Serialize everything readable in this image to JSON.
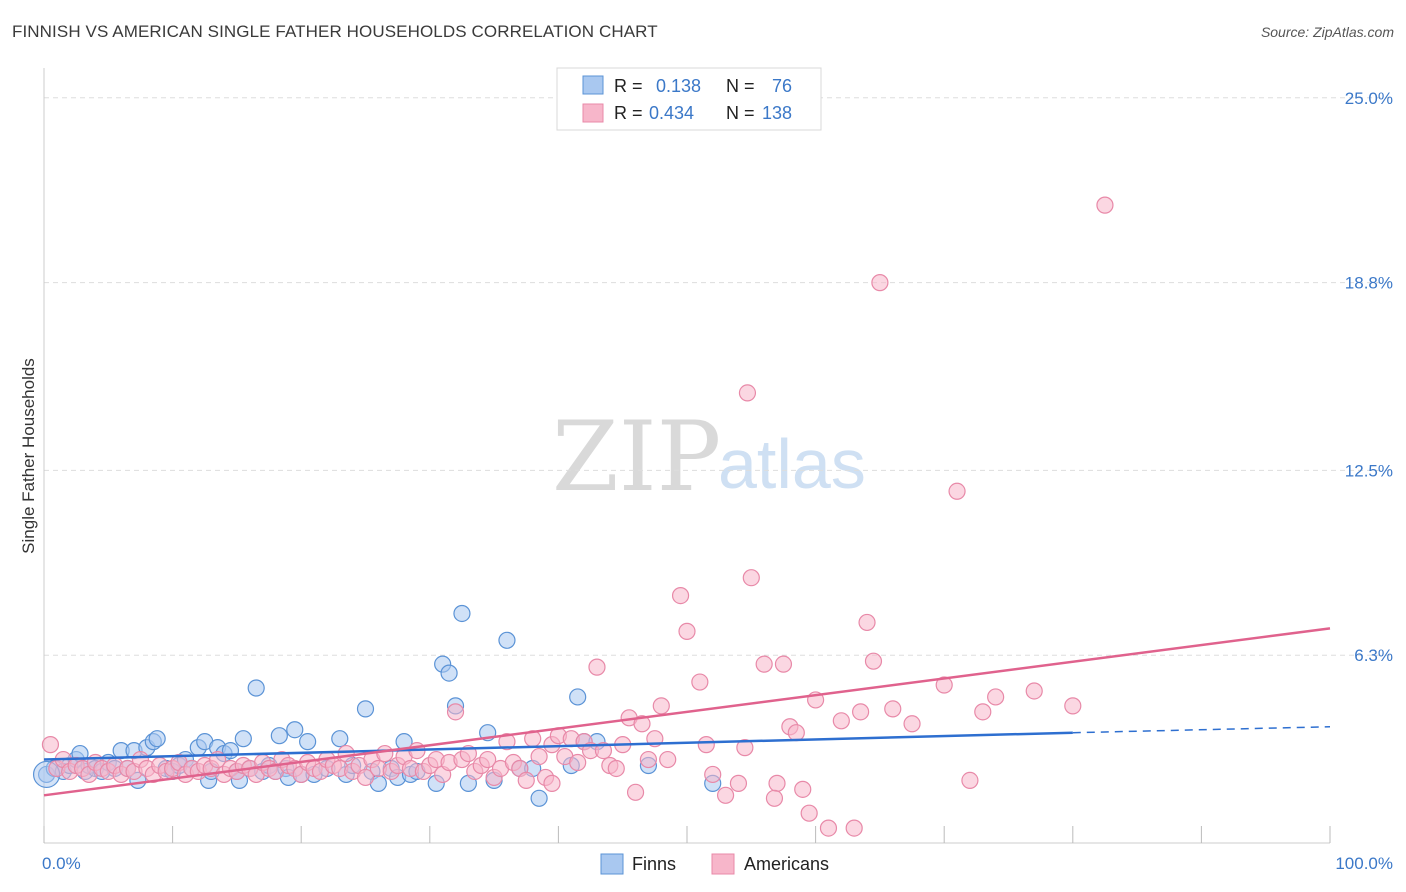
{
  "header": {
    "title": "FINNISH VS AMERICAN SINGLE FATHER HOUSEHOLDS CORRELATION CHART",
    "source": "Source: ZipAtlas.com"
  },
  "watermark": {
    "zip": "ZIP",
    "atlas": "atlas"
  },
  "legend": {
    "rows": [
      {
        "r_label": "R =",
        "r_value": "0.138",
        "n_label": "N =",
        "n_value": "76"
      },
      {
        "r_label": "R =",
        "r_value": "0.434",
        "n_label": "N =",
        "n_value": "138"
      }
    ]
  },
  "bottom_legend": {
    "finns": "Finns",
    "americans": "Americans"
  },
  "colors": {
    "finns_fill": "#a9c8f0",
    "finns_stroke": "#5b93d6",
    "finns_line": "#2e6fd0",
    "americans_fill": "#f7b6ca",
    "americans_stroke": "#e889a8",
    "americans_line": "#e0628d",
    "tick_text": "#3b78c8",
    "grid": "#dddddd"
  },
  "chart_data": {
    "type": "scatter",
    "title": "FINNISH VS AMERICAN SINGLE FATHER HOUSEHOLDS CORRELATION CHART",
    "xlabel": "",
    "ylabel": "Single Father Households",
    "xlim": [
      0,
      100
    ],
    "ylim": [
      0,
      26
    ],
    "x_tick_labels": [
      "0.0%",
      "100.0%"
    ],
    "y_ticks": [
      6.3,
      12.5,
      18.8,
      25.0
    ],
    "y_tick_labels": [
      "6.3%",
      "12.5%",
      "18.8%",
      "25.0%"
    ],
    "grid": true,
    "legend_position": "top-center",
    "series": [
      {
        "name": "Finns",
        "r": 0.138,
        "n": 76,
        "trend": {
          "x0": 0,
          "y0": 2.8,
          "x1": 80,
          "y1": 3.7,
          "dashed_to_x": 100,
          "dashed_to_y": 3.9
        },
        "points": [
          [
            0.2,
            2.3
          ],
          [
            0.8,
            2.5
          ],
          [
            1.5,
            2.4
          ],
          [
            2.0,
            2.6
          ],
          [
            2.5,
            2.8
          ],
          [
            2.8,
            3.0
          ],
          [
            3.2,
            2.4
          ],
          [
            3.5,
            2.6
          ],
          [
            4.0,
            2.5
          ],
          [
            4.5,
            2.4
          ],
          [
            5.0,
            2.7
          ],
          [
            5.5,
            2.5
          ],
          [
            6.0,
            3.1
          ],
          [
            6.5,
            2.5
          ],
          [
            7.0,
            3.1
          ],
          [
            7.3,
            2.1
          ],
          [
            8.0,
            3.2
          ],
          [
            8.5,
            3.4
          ],
          [
            8.8,
            3.5
          ],
          [
            9.5,
            2.5
          ],
          [
            10.0,
            2.4
          ],
          [
            10.5,
            2.6
          ],
          [
            11.0,
            2.8
          ],
          [
            11.5,
            2.5
          ],
          [
            12.0,
            3.2
          ],
          [
            12.5,
            3.4
          ],
          [
            12.8,
            2.1
          ],
          [
            13.0,
            2.4
          ],
          [
            13.5,
            3.2
          ],
          [
            14.0,
            3.0
          ],
          [
            14.5,
            3.1
          ],
          [
            15.0,
            2.4
          ],
          [
            15.2,
            2.1
          ],
          [
            15.5,
            3.5
          ],
          [
            16.0,
            2.5
          ],
          [
            16.5,
            5.2
          ],
          [
            17.0,
            2.4
          ],
          [
            17.5,
            2.6
          ],
          [
            18.0,
            2.4
          ],
          [
            18.3,
            3.6
          ],
          [
            18.8,
            2.5
          ],
          [
            19.0,
            2.2
          ],
          [
            19.5,
            3.8
          ],
          [
            20.0,
            2.3
          ],
          [
            20.5,
            3.4
          ],
          [
            21.0,
            2.3
          ],
          [
            22.0,
            2.5
          ],
          [
            23.0,
            3.5
          ],
          [
            23.5,
            2.3
          ],
          [
            24.0,
            2.6
          ],
          [
            25.0,
            4.5
          ],
          [
            25.5,
            2.4
          ],
          [
            26.0,
            2.0
          ],
          [
            27.0,
            2.5
          ],
          [
            27.5,
            2.2
          ],
          [
            28.0,
            3.4
          ],
          [
            28.5,
            2.3
          ],
          [
            29.0,
            2.4
          ],
          [
            30.5,
            2.0
          ],
          [
            31.0,
            6.0
          ],
          [
            31.5,
            5.7
          ],
          [
            32.0,
            4.6
          ],
          [
            32.5,
            7.7
          ],
          [
            33.0,
            2.0
          ],
          [
            34.5,
            3.7
          ],
          [
            35.0,
            2.1
          ],
          [
            36.0,
            6.8
          ],
          [
            37.0,
            2.5
          ],
          [
            38.0,
            2.5
          ],
          [
            38.5,
            1.5
          ],
          [
            41.0,
            2.6
          ],
          [
            41.5,
            4.9
          ],
          [
            42.0,
            3.4
          ],
          [
            43.0,
            3.4
          ],
          [
            47.0,
            2.6
          ],
          [
            52.0,
            2.0
          ]
        ]
      },
      {
        "name": "Americans",
        "r": 0.434,
        "n": 138,
        "trend": {
          "x0": 0,
          "y0": 1.6,
          "x1": 100,
          "y1": 7.2
        },
        "points": [
          [
            0.5,
            3.3
          ],
          [
            1.0,
            2.5
          ],
          [
            1.5,
            2.8
          ],
          [
            2.0,
            2.4
          ],
          [
            2.5,
            2.6
          ],
          [
            3.0,
            2.5
          ],
          [
            3.5,
            2.3
          ],
          [
            4.0,
            2.7
          ],
          [
            4.5,
            2.5
          ],
          [
            5.0,
            2.4
          ],
          [
            5.5,
            2.6
          ],
          [
            6.0,
            2.3
          ],
          [
            6.5,
            2.5
          ],
          [
            7.0,
            2.4
          ],
          [
            7.5,
            2.8
          ],
          [
            8.0,
            2.5
          ],
          [
            8.5,
            2.3
          ],
          [
            9.0,
            2.6
          ],
          [
            9.5,
            2.4
          ],
          [
            10.0,
            2.5
          ],
          [
            10.5,
            2.7
          ],
          [
            11.0,
            2.3
          ],
          [
            11.5,
            2.5
          ],
          [
            12.0,
            2.4
          ],
          [
            12.5,
            2.6
          ],
          [
            13.0,
            2.5
          ],
          [
            13.5,
            2.8
          ],
          [
            14.0,
            2.3
          ],
          [
            14.5,
            2.5
          ],
          [
            15.0,
            2.4
          ],
          [
            15.5,
            2.6
          ],
          [
            16.0,
            2.5
          ],
          [
            16.5,
            2.3
          ],
          [
            17.0,
            2.7
          ],
          [
            17.5,
            2.5
          ],
          [
            18.0,
            2.4
          ],
          [
            18.5,
            2.8
          ],
          [
            19.0,
            2.6
          ],
          [
            19.5,
            2.5
          ],
          [
            20.0,
            2.3
          ],
          [
            20.5,
            2.7
          ],
          [
            21.0,
            2.5
          ],
          [
            21.5,
            2.4
          ],
          [
            22.0,
            2.8
          ],
          [
            22.5,
            2.6
          ],
          [
            23.0,
            2.5
          ],
          [
            23.5,
            3.0
          ],
          [
            24.0,
            2.4
          ],
          [
            24.5,
            2.6
          ],
          [
            25.0,
            2.2
          ],
          [
            25.5,
            2.8
          ],
          [
            26.0,
            2.5
          ],
          [
            26.5,
            3.0
          ],
          [
            27.0,
            2.4
          ],
          [
            27.5,
            2.6
          ],
          [
            28.0,
            2.9
          ],
          [
            28.5,
            2.5
          ],
          [
            29.0,
            3.1
          ],
          [
            29.5,
            2.4
          ],
          [
            30.0,
            2.6
          ],
          [
            30.5,
            2.8
          ],
          [
            31.0,
            2.3
          ],
          [
            31.5,
            2.7
          ],
          [
            32.0,
            4.4
          ],
          [
            32.5,
            2.8
          ],
          [
            33.0,
            3.0
          ],
          [
            33.5,
            2.4
          ],
          [
            34.0,
            2.6
          ],
          [
            34.5,
            2.8
          ],
          [
            35.0,
            2.2
          ],
          [
            35.5,
            2.5
          ],
          [
            36.0,
            3.4
          ],
          [
            36.5,
            2.7
          ],
          [
            37.0,
            2.5
          ],
          [
            37.5,
            2.1
          ],
          [
            38.0,
            3.5
          ],
          [
            38.5,
            2.9
          ],
          [
            39.0,
            2.2
          ],
          [
            39.5,
            3.3
          ],
          [
            40.0,
            3.6
          ],
          [
            40.5,
            2.9
          ],
          [
            41.0,
            3.5
          ],
          [
            41.5,
            2.7
          ],
          [
            42.0,
            3.4
          ],
          [
            42.5,
            3.1
          ],
          [
            43.0,
            5.9
          ],
          [
            43.5,
            3.1
          ],
          [
            44.0,
            2.6
          ],
          [
            45.0,
            3.3
          ],
          [
            45.5,
            4.2
          ],
          [
            46.0,
            1.7
          ],
          [
            47.0,
            2.8
          ],
          [
            47.5,
            3.5
          ],
          [
            48.0,
            4.6
          ],
          [
            48.5,
            2.8
          ],
          [
            49.5,
            8.3
          ],
          [
            50.0,
            7.1
          ],
          [
            51.0,
            5.4
          ],
          [
            51.5,
            3.3
          ],
          [
            52.0,
            2.3
          ],
          [
            53.0,
            1.6
          ],
          [
            54.0,
            2.0
          ],
          [
            54.5,
            3.2
          ],
          [
            55.0,
            8.9
          ],
          [
            56.0,
            6.0
          ],
          [
            57.0,
            2.0
          ],
          [
            57.5,
            6.0
          ],
          [
            58.0,
            3.9
          ],
          [
            58.5,
            3.7
          ],
          [
            59.0,
            1.8
          ],
          [
            59.5,
            1.0
          ],
          [
            60.0,
            4.8
          ],
          [
            61.0,
            0.5
          ],
          [
            62.0,
            4.1
          ],
          [
            63.0,
            0.5
          ],
          [
            63.5,
            4.4
          ],
          [
            64.0,
            7.4
          ],
          [
            64.5,
            6.1
          ],
          [
            65.0,
            18.8
          ],
          [
            66.0,
            4.5
          ],
          [
            67.5,
            4.0
          ],
          [
            70.0,
            5.3
          ],
          [
            71.0,
            11.8
          ],
          [
            72.0,
            2.1
          ],
          [
            73.0,
            4.4
          ],
          [
            74.0,
            4.9
          ],
          [
            77.0,
            5.1
          ],
          [
            80.0,
            4.6
          ],
          [
            82.5,
            21.4
          ],
          [
            54.7,
            15.1
          ],
          [
            46.5,
            4.0
          ],
          [
            44.5,
            2.5
          ],
          [
            39.5,
            2.0
          ],
          [
            56.8,
            1.5
          ]
        ]
      }
    ]
  }
}
